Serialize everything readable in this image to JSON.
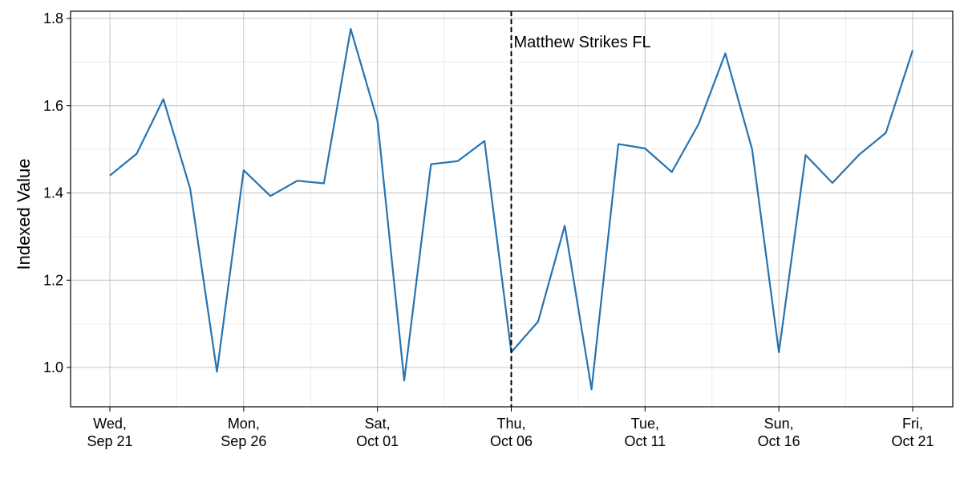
{
  "chart_data": {
    "type": "line",
    "title": "",
    "xlabel": "",
    "ylabel": "Indexed Value",
    "ylim": [
      0.91,
      1.82
    ],
    "yticks": [
      1.0,
      1.2,
      1.4,
      1.6,
      1.8
    ],
    "ytick_labels": [
      "1.0",
      "1.2",
      "1.4",
      "1.6",
      "1.8"
    ],
    "xlim": [
      "2016-09-19",
      "2016-10-22"
    ],
    "xticks": [
      {
        "date": "2016-09-21",
        "line1": "Wed,",
        "line2": "Sep 21"
      },
      {
        "date": "2016-09-26",
        "line1": "Mon,",
        "line2": "Sep 26"
      },
      {
        "date": "2016-10-01",
        "line1": "Sat,",
        "line2": "Oct 01"
      },
      {
        "date": "2016-10-06",
        "line1": "Thu,",
        "line2": "Oct 06"
      },
      {
        "date": "2016-10-11",
        "line1": "Tue,",
        "line2": "Oct 11"
      },
      {
        "date": "2016-10-16",
        "line1": "Sun,",
        "line2": "Oct 16"
      },
      {
        "date": "2016-10-21",
        "line1": "Fri,",
        "line2": "Oct 21"
      }
    ],
    "grid": true,
    "series": [
      {
        "color": "#2673b0",
        "x": [
          "2016-09-21",
          "2016-09-22",
          "2016-09-23",
          "2016-09-24",
          "2016-09-25",
          "2016-09-26",
          "2016-09-27",
          "2016-09-28",
          "2016-09-29",
          "2016-09-30",
          "2016-10-01",
          "2016-10-02",
          "2016-10-03",
          "2016-10-04",
          "2016-10-05",
          "2016-10-06",
          "2016-10-07",
          "2016-10-08",
          "2016-10-09",
          "2016-10-10",
          "2016-10-11",
          "2016-10-12",
          "2016-10-13",
          "2016-10-14",
          "2016-10-15",
          "2016-10-16",
          "2016-10-17",
          "2016-10-18",
          "2016-10-19",
          "2016-10-20",
          "2016-10-21"
        ],
        "values": [
          1.44,
          1.49,
          1.615,
          1.41,
          0.99,
          1.452,
          1.393,
          1.428,
          1.422,
          1.776,
          1.565,
          0.97,
          1.466,
          1.473,
          1.519,
          1.035,
          1.105,
          1.325,
          0.95,
          1.512,
          1.502,
          1.448,
          1.558,
          1.72,
          1.5,
          1.035,
          1.487,
          1.423,
          1.488,
          1.538,
          1.727
        ]
      }
    ],
    "annotations": [
      {
        "date": "2016-10-06",
        "text": "Matthew Strikes FL",
        "style": "dashed-vertical"
      }
    ]
  }
}
